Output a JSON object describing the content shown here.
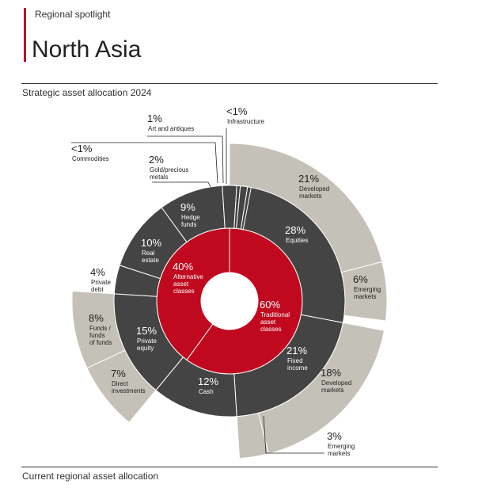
{
  "header": {
    "kicker": "Regional spotlight",
    "title": "North Asia",
    "section_title": "Strategic asset allocation 2024",
    "footer_title": "Current regional asset allocation"
  },
  "colors": {
    "accent": "#c0091e",
    "dark": "#444444",
    "light": "#c4c1b8",
    "text": "#222222"
  },
  "chart_data": {
    "type": "sunburst",
    "title": "Strategic asset allocation 2024",
    "inner": [
      {
        "name": "Alternative asset classes",
        "value": 40,
        "pct": "40%",
        "lines": [
          "Alternative",
          "asset",
          "classes"
        ]
      },
      {
        "name": "Traditional asset classes",
        "value": 60,
        "pct": "60%",
        "lines": [
          "Traditional",
          "asset",
          "classes"
        ]
      }
    ],
    "middle": [
      {
        "name": "Equities",
        "value": 28,
        "pct": "28%",
        "lines": [
          "Equities"
        ]
      },
      {
        "name": "Fixed income",
        "value": 21,
        "pct": "21%",
        "lines": [
          "Fixed",
          "income"
        ]
      },
      {
        "name": "Cash",
        "value": 12,
        "pct": "12%",
        "lines": [
          "Cash"
        ]
      },
      {
        "name": "Private equity",
        "value": 15,
        "pct": "15%",
        "lines": [
          "Private",
          "equity"
        ]
      },
      {
        "name": "Private debt",
        "value": 4,
        "pct": "4%",
        "lines": [
          "Private",
          "debt"
        ]
      },
      {
        "name": "Real estate",
        "value": 10,
        "pct": "10%",
        "lines": [
          "Real",
          "estate"
        ]
      },
      {
        "name": "Hedge funds",
        "value": 9,
        "pct": "9%",
        "lines": [
          "Hedge",
          "funds"
        ]
      },
      {
        "name": "Gold/precious metals",
        "value": 2,
        "pct": "2%",
        "lines": [
          "Gold/precious",
          "metals"
        ]
      },
      {
        "name": "Commodities",
        "value": 0.5,
        "pct": "<1%",
        "lines": [
          "Commodities"
        ]
      },
      {
        "name": "Art and antiques",
        "value": 1,
        "pct": "1%",
        "lines": [
          "Art and antiques"
        ]
      },
      {
        "name": "Infrastructure",
        "value": 0.5,
        "pct": "<1%",
        "lines": [
          "Infrastructure"
        ]
      }
    ],
    "outer": [
      {
        "name": "Developed markets (equities)",
        "value": 21,
        "pct": "21%",
        "lines": [
          "Developed",
          "markets"
        ]
      },
      {
        "name": "Emerging markets (equities)",
        "value": 6,
        "pct": "6%",
        "lines": [
          "Emerging",
          "markets"
        ]
      },
      {
        "name": "Developed markets (fixed income)",
        "value": 18,
        "pct": "18%",
        "lines": [
          "Developed",
          "markets"
        ]
      },
      {
        "name": "Emerging markets (fixed income)",
        "value": 3,
        "pct": "3%",
        "lines": [
          "Emerging",
          "markets"
        ]
      },
      {
        "name": "Direct investments",
        "value": 7,
        "pct": "7%",
        "lines": [
          "Direct",
          "investments"
        ]
      },
      {
        "name": "Funds / funds of funds",
        "value": 8,
        "pct": "8%",
        "lines": [
          "Funds /",
          "funds",
          "of funds"
        ]
      }
    ]
  }
}
